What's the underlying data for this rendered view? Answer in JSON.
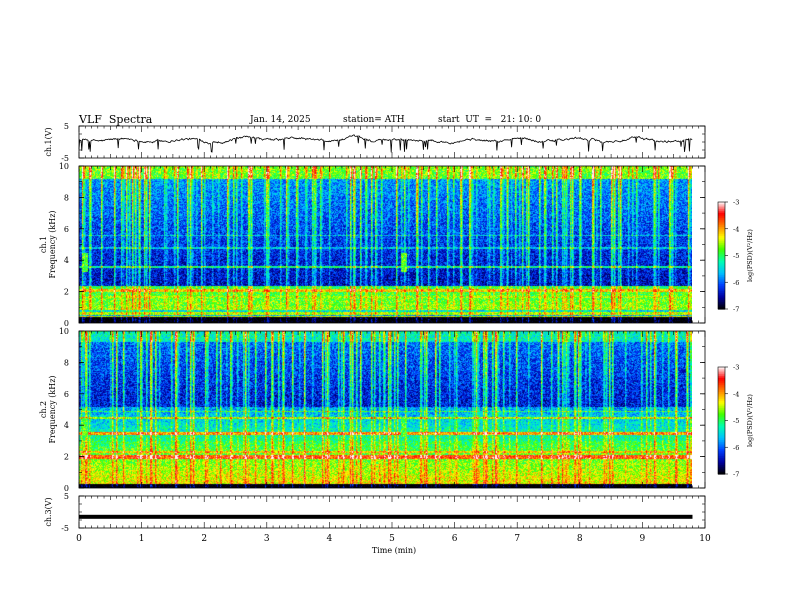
{
  "header": {
    "title": "VLF  Spectra",
    "date": "Jan. 14, 2025",
    "station": "station= ATH",
    "start": "start  UT  =   21: 10: 0"
  },
  "chart_data": [
    {
      "type": "line",
      "panel": "ch1-waveform",
      "ylabel": "ch.1(V)",
      "ylim": [
        -5,
        5
      ],
      "yticks": [
        "5",
        "-5"
      ],
      "xlim": [
        0,
        10
      ],
      "description_level_V": 0.5,
      "color": "#000000"
    },
    {
      "type": "heatmap",
      "panel": "ch1-spectrogram",
      "ylabel": "ch.1\nFrequency (kHz)",
      "ylim": [
        0,
        10
      ],
      "yticks": [
        "0",
        "2",
        "4",
        "6",
        "8",
        "10"
      ],
      "xlim": [
        0,
        9.8
      ],
      "colorbar": {
        "label": "log(PSD)(V²/Hz)",
        "range": [
          -7,
          -3
        ],
        "ticks": [
          "-3",
          "-4",
          "-5",
          "-6",
          "-7"
        ]
      }
    },
    {
      "type": "heatmap",
      "panel": "ch2-spectrogram",
      "ylabel": "ch.2\nFrequency (kHz)",
      "ylim": [
        0,
        10
      ],
      "yticks": [
        "0",
        "2",
        "4",
        "6",
        "8",
        "10"
      ],
      "xlim": [
        0,
        9.8
      ],
      "colorbar": {
        "label": "log(PSD)(V²/Hz)",
        "range": [
          -7,
          -3
        ],
        "ticks": [
          "-3",
          "-4",
          "-5",
          "-6",
          "-7"
        ]
      }
    },
    {
      "type": "line",
      "panel": "ch3-waveform",
      "ylabel": "ch.3(V)",
      "ylim": [
        -5,
        5
      ],
      "yticks": [
        "5",
        "-5"
      ],
      "xlim": [
        0,
        9.8
      ],
      "level_V": -1.5,
      "color": "#000000"
    }
  ],
  "x_axis": {
    "label": "Time  (min)",
    "ticks": [
      "0",
      "1",
      "2",
      "3",
      "4",
      "5",
      "6",
      "7",
      "8",
      "9",
      "10"
    ],
    "range": [
      0,
      10
    ]
  },
  "colors": {
    "colormap": [
      "#000000",
      "#0000a0",
      "#0040ff",
      "#00c0ff",
      "#00ffb0",
      "#40ff00",
      "#ffff00",
      "#ff8000",
      "#ff0000",
      "#ffffff"
    ]
  }
}
